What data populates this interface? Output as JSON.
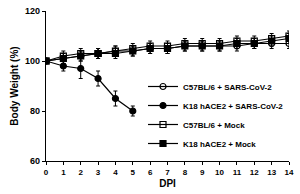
{
  "chart_data": {
    "type": "line",
    "x_label": "DPI",
    "y_label": "Body Weight (%)",
    "xlim": [
      0,
      14
    ],
    "xticks": [
      0,
      1,
      2,
      3,
      4,
      5,
      6,
      7,
      8,
      9,
      10,
      11,
      12,
      13,
      14
    ],
    "ylim": [
      60,
      120
    ],
    "yticks": [
      60,
      80,
      100,
      120
    ],
    "grid": false,
    "legend": "lower right",
    "series": [
      {
        "name": "C57BL/6 + SARS-CoV-2",
        "color": "#000000",
        "marker": "circle-open",
        "x": [
          0,
          1,
          2,
          3,
          4,
          5,
          6,
          7,
          8,
          9,
          10,
          11,
          12,
          13,
          14
        ],
        "values": [
          100,
          101,
          102,
          103,
          104,
          104,
          105,
          105,
          106,
          106,
          106,
          106,
          107,
          107,
          107
        ],
        "error": [
          1,
          2,
          2,
          2,
          2,
          2,
          2,
          2,
          2,
          2,
          2,
          2,
          2,
          2,
          2
        ]
      },
      {
        "name": "K18 hACE2 + SARS-CoV-2",
        "color": "#000000",
        "marker": "circle",
        "x": [
          0,
          1,
          2,
          3,
          4,
          5
        ],
        "values": [
          100,
          98,
          97,
          93,
          85,
          80
        ],
        "error": [
          1,
          2,
          4,
          3,
          3,
          2
        ]
      },
      {
        "name": "C57BL/6 + Mock",
        "color": "#000000",
        "marker": "square-open",
        "x": [
          0,
          1,
          2,
          3,
          4,
          5,
          6,
          7,
          8,
          9,
          10,
          11,
          12,
          13,
          14
        ],
        "values": [
          100,
          102,
          103,
          103,
          104,
          105,
          106,
          106,
          107,
          107,
          107,
          108,
          108,
          109,
          110
        ],
        "error": [
          1,
          2,
          2,
          2,
          2,
          2,
          2,
          2,
          2,
          2,
          2,
          2,
          2,
          2,
          2
        ]
      },
      {
        "name": "K18 hACE2 + Mock",
        "color": "#000000",
        "marker": "square",
        "x": [
          0,
          1,
          2,
          3,
          4,
          5,
          6,
          7,
          8,
          9,
          10,
          11,
          12,
          13,
          14
        ],
        "values": [
          100,
          101,
          102,
          103,
          103,
          104,
          105,
          105,
          106,
          106,
          106,
          107,
          107,
          108,
          109
        ],
        "error": [
          1,
          2,
          2,
          2,
          2,
          2,
          2,
          2,
          2,
          2,
          2,
          2,
          2,
          2,
          2
        ]
      }
    ]
  }
}
